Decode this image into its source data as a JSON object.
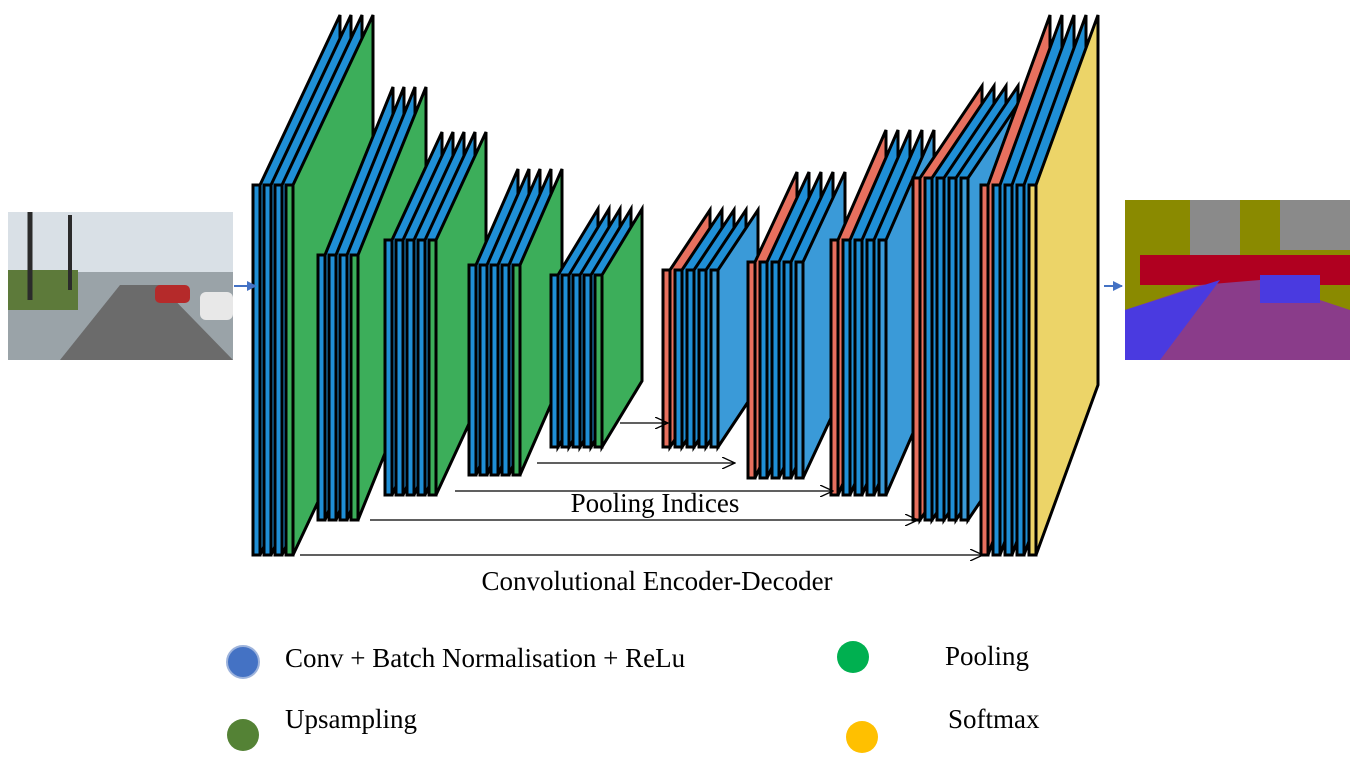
{
  "labels": {
    "pooling_indices": "Pooling Indices",
    "caption": "Convolutional Encoder-Decoder"
  },
  "legend": [
    {
      "label": "Conv + Batch Normalisation + ReLu"
    },
    {
      "label": "Pooling"
    },
    {
      "label": "Upsampling"
    },
    {
      "label": "Softmax"
    }
  ]
}
